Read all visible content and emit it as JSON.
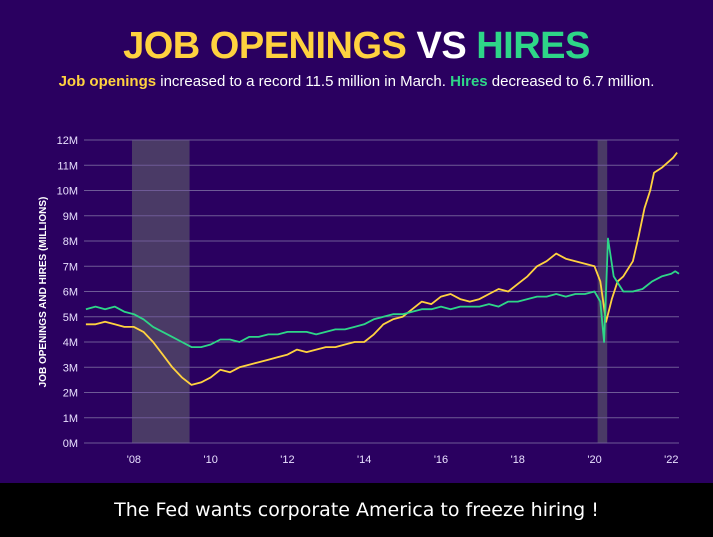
{
  "title": {
    "w1": "JOB OPENINGS",
    "w2": "VS",
    "w3": "HIRES"
  },
  "subtitle": {
    "hl1": "Job openings",
    "t1": " increased to a record 11.5 million in March. ",
    "hl2": "Hires",
    "t2": " decreased to 6.7 million."
  },
  "caption": "The Fed wants corporate America to freeze hiring !",
  "colors": {
    "background": "#2a0060",
    "openings": "#ffd23f",
    "hires": "#2ed688",
    "recession": "#4a3a66",
    "grid": "#6e5a96"
  },
  "chart_data": {
    "type": "line",
    "title": "JOB OPENINGS VS HIRES",
    "ylabel": "JOB OPENINGS AND HIRES (MILLIONS)",
    "xlabel": "",
    "ylim": [
      0,
      12
    ],
    "xlim": [
      2006.7,
      2022.2
    ],
    "y_ticks": [
      0,
      1,
      2,
      3,
      4,
      5,
      6,
      7,
      8,
      9,
      10,
      11,
      12
    ],
    "y_tick_labels": [
      "0M",
      "1M",
      "2M",
      "3M",
      "4M",
      "5M",
      "6M",
      "7M",
      "8M",
      "9M",
      "10M",
      "11M",
      "12M"
    ],
    "x_ticks": [
      2008,
      2010,
      2012,
      2014,
      2016,
      2018,
      2020,
      2022
    ],
    "x_tick_labels": [
      "'08",
      "'10",
      "'12",
      "'14",
      "'16",
      "'18",
      "'20",
      "'22"
    ],
    "grid": "horizontal",
    "recession_bands": [
      [
        2007.95,
        2009.45
      ],
      [
        2020.08,
        2020.33
      ]
    ],
    "series": [
      {
        "name": "Job openings",
        "color": "#ffd23f",
        "points": [
          [
            2006.75,
            4.7
          ],
          [
            2007.0,
            4.7
          ],
          [
            2007.25,
            4.8
          ],
          [
            2007.5,
            4.7
          ],
          [
            2007.75,
            4.6
          ],
          [
            2008.0,
            4.6
          ],
          [
            2008.25,
            4.4
          ],
          [
            2008.5,
            4.0
          ],
          [
            2008.75,
            3.5
          ],
          [
            2009.0,
            3.0
          ],
          [
            2009.25,
            2.6
          ],
          [
            2009.5,
            2.3
          ],
          [
            2009.75,
            2.4
          ],
          [
            2010.0,
            2.6
          ],
          [
            2010.25,
            2.9
          ],
          [
            2010.5,
            2.8
          ],
          [
            2010.75,
            3.0
          ],
          [
            2011.0,
            3.1
          ],
          [
            2011.25,
            3.2
          ],
          [
            2011.5,
            3.3
          ],
          [
            2011.75,
            3.4
          ],
          [
            2012.0,
            3.5
          ],
          [
            2012.25,
            3.7
          ],
          [
            2012.5,
            3.6
          ],
          [
            2012.75,
            3.7
          ],
          [
            2013.0,
            3.8
          ],
          [
            2013.25,
            3.8
          ],
          [
            2013.5,
            3.9
          ],
          [
            2013.75,
            4.0
          ],
          [
            2014.0,
            4.0
          ],
          [
            2014.25,
            4.3
          ],
          [
            2014.5,
            4.7
          ],
          [
            2014.75,
            4.9
          ],
          [
            2015.0,
            5.0
          ],
          [
            2015.25,
            5.3
          ],
          [
            2015.5,
            5.6
          ],
          [
            2015.75,
            5.5
          ],
          [
            2016.0,
            5.8
          ],
          [
            2016.25,
            5.9
          ],
          [
            2016.5,
            5.7
          ],
          [
            2016.75,
            5.6
          ],
          [
            2017.0,
            5.7
          ],
          [
            2017.25,
            5.9
          ],
          [
            2017.5,
            6.1
          ],
          [
            2017.75,
            6.0
          ],
          [
            2018.0,
            6.3
          ],
          [
            2018.25,
            6.6
          ],
          [
            2018.5,
            7.0
          ],
          [
            2018.75,
            7.2
          ],
          [
            2019.0,
            7.5
          ],
          [
            2019.25,
            7.3
          ],
          [
            2019.5,
            7.2
          ],
          [
            2019.75,
            7.1
          ],
          [
            2020.0,
            7.0
          ],
          [
            2020.15,
            6.4
          ],
          [
            2020.3,
            4.8
          ],
          [
            2020.45,
            5.7
          ],
          [
            2020.6,
            6.4
          ],
          [
            2020.75,
            6.6
          ],
          [
            2021.0,
            7.2
          ],
          [
            2021.15,
            8.2
          ],
          [
            2021.3,
            9.3
          ],
          [
            2021.45,
            10.0
          ],
          [
            2021.55,
            10.7
          ],
          [
            2021.75,
            10.9
          ],
          [
            2021.9,
            11.1
          ],
          [
            2022.05,
            11.3
          ],
          [
            2022.15,
            11.5
          ]
        ]
      },
      {
        "name": "Hires",
        "color": "#2ed688",
        "points": [
          [
            2006.75,
            5.3
          ],
          [
            2007.0,
            5.4
          ],
          [
            2007.25,
            5.3
          ],
          [
            2007.5,
            5.4
          ],
          [
            2007.75,
            5.2
          ],
          [
            2008.0,
            5.1
          ],
          [
            2008.25,
            4.9
          ],
          [
            2008.5,
            4.6
          ],
          [
            2008.75,
            4.4
          ],
          [
            2009.0,
            4.2
          ],
          [
            2009.25,
            4.0
          ],
          [
            2009.5,
            3.8
          ],
          [
            2009.75,
            3.8
          ],
          [
            2010.0,
            3.9
          ],
          [
            2010.25,
            4.1
          ],
          [
            2010.5,
            4.1
          ],
          [
            2010.75,
            4.0
          ],
          [
            2011.0,
            4.2
          ],
          [
            2011.25,
            4.2
          ],
          [
            2011.5,
            4.3
          ],
          [
            2011.75,
            4.3
          ],
          [
            2012.0,
            4.4
          ],
          [
            2012.25,
            4.4
          ],
          [
            2012.5,
            4.4
          ],
          [
            2012.75,
            4.3
          ],
          [
            2013.0,
            4.4
          ],
          [
            2013.25,
            4.5
          ],
          [
            2013.5,
            4.5
          ],
          [
            2013.75,
            4.6
          ],
          [
            2014.0,
            4.7
          ],
          [
            2014.25,
            4.9
          ],
          [
            2014.5,
            5.0
          ],
          [
            2014.75,
            5.1
          ],
          [
            2015.0,
            5.1
          ],
          [
            2015.25,
            5.2
          ],
          [
            2015.5,
            5.3
          ],
          [
            2015.75,
            5.3
          ],
          [
            2016.0,
            5.4
          ],
          [
            2016.25,
            5.3
          ],
          [
            2016.5,
            5.4
          ],
          [
            2016.75,
            5.4
          ],
          [
            2017.0,
            5.4
          ],
          [
            2017.25,
            5.5
          ],
          [
            2017.5,
            5.4
          ],
          [
            2017.75,
            5.6
          ],
          [
            2018.0,
            5.6
          ],
          [
            2018.25,
            5.7
          ],
          [
            2018.5,
            5.8
          ],
          [
            2018.75,
            5.8
          ],
          [
            2019.0,
            5.9
          ],
          [
            2019.25,
            5.8
          ],
          [
            2019.5,
            5.9
          ],
          [
            2019.75,
            5.9
          ],
          [
            2020.0,
            6.0
          ],
          [
            2020.15,
            5.6
          ],
          [
            2020.25,
            4.0
          ],
          [
            2020.35,
            8.1
          ],
          [
            2020.5,
            6.6
          ],
          [
            2020.75,
            6.0
          ],
          [
            2021.0,
            6.0
          ],
          [
            2021.25,
            6.1
          ],
          [
            2021.5,
            6.4
          ],
          [
            2021.75,
            6.6
          ],
          [
            2022.0,
            6.7
          ],
          [
            2022.1,
            6.8
          ],
          [
            2022.2,
            6.7
          ]
        ]
      }
    ]
  }
}
